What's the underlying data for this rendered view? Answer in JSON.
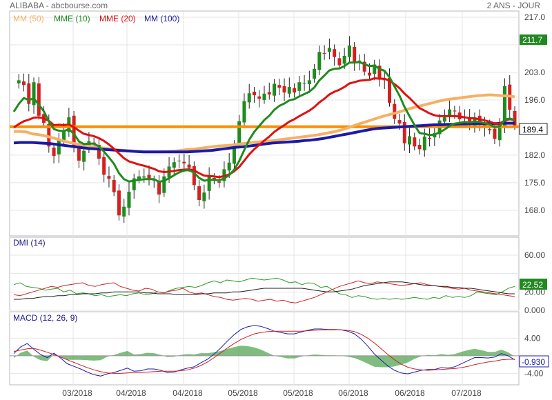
{
  "header": {
    "title": "ALIBABA - abcbourse.com",
    "period": "2 ANS - JOUR"
  },
  "colors": {
    "mm50": "#f5b064",
    "mme10": "#1e8c1e",
    "mme20": "#e01010",
    "mm100": "#1a1aa8",
    "ref": "#ff8c00",
    "up": "#1e8c1e",
    "down": "#d42020",
    "grid": "#e4e4e4",
    "label_bg": "#228822",
    "dmi_plus": "#2a9a2a",
    "dmi_minus": "#d02020",
    "adx": "#202020",
    "macd_line": "#1a1ab0",
    "signal_line": "#d02020",
    "hist": "#3a9a3a"
  },
  "x_labels": [
    "03/2018",
    "04/2018",
    "04/2018",
    "05/2018",
    "05/2018",
    "06/2018",
    "06/2018",
    "07/2018"
  ],
  "chart_data": [
    {
      "type": "candlestick",
      "name": "price",
      "legend": [
        "MM (50)",
        "MME (10)",
        "MME (20)",
        "MM (100)"
      ],
      "y_ticks": [
        168.0,
        175.0,
        182.0,
        189.0,
        196.0,
        203.0,
        210.0,
        217.0
      ],
      "y_tick_labels": [
        "168.0",
        "175.0",
        "182.0",
        "",
        "196.0",
        "203.0",
        "",
        "217.0"
      ],
      "ylim": [
        161.5,
        217.0
      ],
      "last_value": "189.4",
      "high_value": "211.7",
      "ref_level": 189.2,
      "close": [
        200.5,
        201,
        199.8,
        195,
        200.5,
        192,
        190.2,
        184.2,
        181.8,
        186,
        188.2,
        191.6,
        184.3,
        180.6,
        183.1,
        185.5,
        184.9,
        181.1,
        177,
        176,
        172.6,
        166.7,
        168.9,
        172.7,
        176.1,
        176.6,
        176.6,
        175.9,
        175.6,
        172,
        176.6,
        179.1,
        180.2,
        180.6,
        179.9,
        178.8,
        174.4,
        170.6,
        172.5,
        176.5,
        175.6,
        175,
        178.4,
        180.1,
        184.6,
        190.6,
        195.7,
        197.7,
        197.2,
        196.3,
        197.6,
        197.4,
        200.1,
        199.1,
        197.9,
        199.3,
        197.9,
        200.5,
        200.3,
        201,
        203.9,
        208.2,
        207.8,
        209.2,
        206.9,
        204.8,
        207.2,
        209.8,
        205.3,
        206,
        203.2,
        202.2,
        205,
        201.3,
        201.2,
        195.3,
        191.2,
        190,
        185,
        186.8,
        184.2,
        183.5,
        186.7,
        186.1,
        187.6,
        190.8,
        191.6,
        193.6,
        193.1,
        191.1,
        191.6,
        189.6,
        191.6,
        190,
        188.9,
        188.3,
        186.1,
        189.8,
        199.5,
        193.5,
        189.4
      ],
      "mm50": [
        188,
        188,
        187.9,
        187.4,
        187.2,
        186.9,
        186.5,
        186.1,
        185.6,
        185.2,
        184.9,
        184.6,
        184.3,
        184.1,
        183.9,
        183.7,
        183.5,
        183.3,
        183.2,
        183.1,
        182.9,
        182.8,
        182.8,
        182.8,
        182.8,
        182.9,
        183,
        183.2,
        183.4,
        183.5,
        183.7,
        183.9,
        184.1,
        184.3,
        184.4,
        184.5,
        184.7,
        184.9,
        185.1,
        185.3,
        185.4,
        185.5,
        185.7,
        185.9,
        186.1,
        186.3,
        186.5,
        186.7,
        186.9,
        187.1,
        187.4,
        187.7,
        188,
        188.4,
        188.9,
        189.5,
        190,
        190.5,
        191,
        191.5,
        192,
        192.4,
        192.8,
        193.3,
        193.8,
        194.2,
        194.6,
        195,
        195.4,
        195.8,
        196.1,
        196.3,
        196.5,
        196.7,
        196.9,
        197.1,
        197.2,
        197.3,
        197.2,
        197.1,
        197,
        196.8
      ],
      "mme10": [
        193,
        195,
        196.5,
        196,
        196.4,
        194.8,
        193.1,
        190.6,
        188.6,
        188.2,
        188.1,
        188.6,
        187.4,
        185.5,
        184.8,
        184.9,
        184.9,
        184.2,
        182.9,
        181.4,
        179.8,
        177.4,
        175.9,
        175.3,
        175.5,
        175.7,
        175.9,
        175.9,
        175.9,
        175.2,
        175.5,
        176.1,
        176.9,
        177.6,
        178.1,
        178.2,
        177.5,
        176.2,
        175.5,
        175.7,
        175.7,
        175.6,
        176.1,
        176.9,
        178.3,
        180.5,
        183.3,
        185.9,
        187.9,
        189.4,
        190.9,
        192,
        193.5,
        194.5,
        195.1,
        195.9,
        196.2,
        196.9,
        197.5,
        198.1,
        199.2,
        201,
        202.2,
        203.5,
        203.9,
        204,
        204.6,
        205.5,
        205.5,
        205.6,
        205.1,
        204.6,
        204.7,
        203.9,
        203.4,
        201.8,
        199.4,
        197.1,
        194.2,
        191.9,
        189.6,
        187.6,
        187.4,
        187.1,
        187.2,
        187.8,
        188.5,
        189.4,
        190,
        190.2,
        190.4,
        190.3,
        190.5,
        190.4,
        190.1,
        189.8,
        189.1,
        189.3,
        191,
        191.3,
        190.9
      ],
      "mme20": [
        189,
        189.9,
        190.6,
        191,
        191.5,
        191.6,
        191.3,
        190.7,
        189.6,
        189.7,
        189.6,
        189.8,
        189.1,
        188.2,
        187.4,
        187.1,
        186.8,
        186.3,
        185.6,
        184.7,
        183.6,
        182.4,
        181.2,
        180.4,
        180,
        179.6,
        179.3,
        178.9,
        178.5,
        177.9,
        177.7,
        177.8,
        178,
        178.2,
        178.3,
        178.4,
        178.1,
        177.4,
        176.8,
        176.7,
        176.6,
        176.4,
        176.7,
        177.1,
        177.9,
        179,
        180.6,
        182.2,
        183.5,
        184.6,
        185.7,
        186.7,
        187.9,
        188.8,
        189.6,
        190.5,
        191.1,
        191.9,
        192.6,
        193.3,
        194.2,
        195.4,
        196.3,
        197.4,
        198.1,
        198.6,
        199.3,
        200.2,
        200.5,
        200.9,
        201,
        201.1,
        201.5,
        201.4,
        201.4,
        200.9,
        200,
        199,
        197.6,
        196.5,
        195.2,
        193.9,
        193.3,
        192.6,
        192.1,
        191.9,
        191.9,
        191.9,
        191.9,
        191.8,
        191.6,
        191.4,
        191.3,
        191.1,
        190.8,
        190.5,
        190,
        190,
        190.8,
        191.1,
        190.9
      ],
      "mm100": [
        185.1,
        185.2,
        185.2,
        185.2,
        185.1,
        185,
        184.9,
        184.7,
        184.5,
        184.3,
        184.1,
        183.9,
        183.7,
        183.6,
        183.5,
        183.4,
        183.3,
        183.2,
        183.1,
        183,
        182.9,
        182.8,
        182.8,
        182.8,
        182.8,
        182.8,
        182.8,
        182.8,
        182.8,
        182.9,
        183,
        183.1,
        183.2,
        183.4,
        183.6,
        183.8,
        184,
        184.1,
        184.3,
        184.5,
        184.7,
        184.9,
        185.1,
        185.2,
        185.3,
        185.4,
        185.5,
        185.7,
        185.8,
        186,
        186.2,
        186.5,
        186.8,
        187.1,
        187.4,
        187.7,
        188,
        188.3,
        188.6,
        188.8,
        188.9,
        189,
        189.1,
        189.2,
        189.3,
        189.4,
        189.5,
        189.6,
        189.7,
        189.7,
        189.8,
        189.8,
        189.9,
        189.9,
        190,
        190,
        190,
        190,
        190,
        190.1,
        190.1,
        190.1
      ]
    },
    {
      "type": "line",
      "name": "DMI (14)",
      "y_ticks": [
        0,
        20,
        40,
        60
      ],
      "y_tick_labels": [
        "0.000",
        "20.00",
        "",
        "60.00"
      ],
      "ylim": [
        0,
        75
      ],
      "last_value": "22.52",
      "series": [
        {
          "key": "dmi_plus",
          "values": [
            28,
            30,
            26,
            25,
            24,
            22,
            23,
            24,
            20,
            22,
            18,
            19,
            18,
            16,
            17,
            15,
            16,
            17,
            16,
            18,
            19,
            17,
            18,
            20,
            19,
            22,
            24,
            25,
            26,
            25,
            27,
            30,
            32,
            30,
            33,
            32,
            31,
            33,
            35,
            34,
            33,
            34,
            35,
            33,
            30,
            31,
            28,
            30,
            29,
            25,
            26,
            22,
            18,
            17,
            14,
            16,
            15,
            13,
            12,
            13,
            12,
            13,
            12,
            13,
            14,
            13,
            12,
            14,
            13,
            16,
            14,
            15,
            14,
            16,
            20,
            19,
            18,
            17,
            20,
            24,
            26
          ]
        },
        {
          "key": "dmi_minus",
          "values": [
            17,
            16,
            18,
            20,
            22,
            24,
            26,
            25,
            27,
            28,
            29,
            30,
            27,
            26,
            28,
            29,
            30,
            26,
            24,
            22,
            21,
            24,
            23,
            20,
            19,
            21,
            22,
            24,
            20,
            18,
            19,
            17,
            15,
            14,
            12,
            11,
            12,
            13,
            12,
            10,
            11,
            12,
            10,
            11,
            9,
            8,
            10,
            12,
            14,
            17,
            20,
            23,
            26,
            28,
            30,
            32,
            30,
            29,
            31,
            30,
            29,
            28,
            27,
            28,
            29,
            30,
            28,
            27,
            26,
            25,
            24,
            23,
            24,
            22,
            21,
            20,
            19,
            18,
            17,
            16,
            15
          ]
        },
        {
          "key": "adx",
          "values": [
            12,
            12,
            13,
            13,
            14,
            15,
            15,
            16,
            16,
            17,
            17,
            18,
            18,
            18,
            19,
            19,
            20,
            20,
            20,
            20,
            20,
            19,
            19,
            18,
            18,
            18,
            17,
            17,
            17,
            17,
            18,
            18,
            19,
            19,
            19,
            20,
            20,
            21,
            22,
            23,
            24,
            24,
            24,
            24,
            24,
            24,
            24,
            23,
            22,
            21,
            20,
            20,
            21,
            22,
            23,
            25,
            27,
            28,
            29,
            30,
            31,
            31,
            31,
            30,
            29,
            28,
            27,
            27,
            26,
            26,
            25,
            25,
            24,
            24,
            23,
            22,
            21,
            20,
            19,
            18,
            18
          ]
        }
      ]
    },
    {
      "type": "line",
      "name": "MACD (12, 26, 9)",
      "y_ticks": [
        -4,
        0,
        4
      ],
      "y_tick_labels": [
        "-4.00",
        "",
        "4.00"
      ],
      "ylim": [
        -6.6,
        9.4
      ],
      "last_value": "-0.930",
      "series": [
        {
          "key": "macd_line",
          "values": [
            0.5,
            2.0,
            2.8,
            1.5,
            0.3,
            -0.4,
            0.6,
            -0.5,
            -1.8,
            -2.4,
            -3.0,
            -3.7,
            -4.3,
            -4.6,
            -4.1,
            -3.8,
            -3.3,
            -2.8,
            -3.5,
            -3.4,
            -3.0,
            -3.0,
            -3.3,
            -3.8,
            -3.7,
            -3.2,
            -2.8,
            -2.5,
            -1.6,
            -0.8,
            0.4,
            1.8,
            3.4,
            4.8,
            6.0,
            6.6,
            6.9,
            6.7,
            6.2,
            5.6,
            5.3,
            5.0,
            5.0,
            5.4,
            5.8,
            6.1,
            6.1,
            6.0,
            6.0,
            5.9,
            5.6,
            5.0,
            3.8,
            2.2,
            0.4,
            -1.0,
            -2.3,
            -3.3,
            -3.9,
            -4.1,
            -3.7,
            -3.3,
            -3.1,
            -3.1,
            -2.7,
            -2.8,
            -2.5,
            -1.8,
            -1.1,
            -0.4,
            -0.4,
            -0.5,
            -0.3,
            0.5,
            0.0,
            -0.9
          ]
        },
        {
          "key": "signal_line",
          "values": [
            1.0,
            1.3,
            1.6,
            1.7,
            1.3,
            0.8,
            0.3,
            -0.3,
            -0.9,
            -1.5,
            -2.1,
            -2.7,
            -3.2,
            -3.6,
            -3.9,
            -4.0,
            -4.0,
            -3.9,
            -3.8,
            -3.8,
            -3.7,
            -3.6,
            -3.5,
            -3.5,
            -3.5,
            -3.4,
            -3.2,
            -2.8,
            -2.2,
            -1.4,
            -0.4,
            0.7,
            1.8,
            2.8,
            3.7,
            4.4,
            5.0,
            5.3,
            5.5,
            5.6,
            5.6,
            5.6,
            5.6,
            5.6,
            5.7,
            5.8,
            5.9,
            5.9,
            5.9,
            5.9,
            5.8,
            5.5,
            4.9,
            4.0,
            2.9,
            1.6,
            0.3,
            -0.9,
            -1.9,
            -2.6,
            -3.0,
            -3.2,
            -3.3,
            -3.2,
            -3.1,
            -3.0,
            -2.9,
            -2.7,
            -2.4,
            -2.0,
            -1.7,
            -1.4,
            -1.2,
            -0.9,
            -0.8,
            -0.8
          ]
        }
      ]
    }
  ]
}
